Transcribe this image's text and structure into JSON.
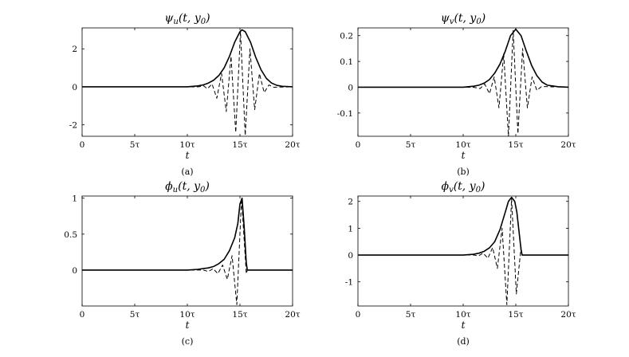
{
  "chart_data": [
    {
      "type": "line",
      "panel": "a",
      "title": "ψu(t, y0)",
      "title_parts": {
        "sym": "ψ",
        "sub": "u",
        "args": "(t, y",
        "sub2": "0",
        "close": ")"
      },
      "xlabel": "t",
      "caption": "(a)",
      "xlim": [
        0,
        20
      ],
      "ylim": [
        -2.6,
        3.1
      ],
      "xtick_values": [
        0,
        5,
        10,
        15,
        20
      ],
      "xtick_labels": [
        "0",
        "5τ",
        "10τ",
        "15τ",
        "20τ"
      ],
      "ytick_values": [
        -2,
        0,
        2
      ],
      "ytick_labels": [
        "-2",
        "0",
        "2"
      ],
      "series": [
        {
          "style": "solid",
          "x": [
            0,
            10,
            11,
            11.5,
            12,
            12.5,
            13,
            13.5,
            14,
            14.5,
            15,
            15.2,
            15.5,
            16,
            16.5,
            17,
            17.5,
            18,
            18.5,
            19,
            20
          ],
          "y": [
            0,
            0.0,
            0.05,
            0.1,
            0.2,
            0.35,
            0.6,
            1.0,
            1.6,
            2.35,
            2.9,
            3.0,
            2.9,
            2.35,
            1.55,
            0.9,
            0.45,
            0.2,
            0.08,
            0.03,
            0
          ]
        },
        {
          "style": "dashed",
          "x": [
            0,
            11,
            11.55,
            11.9,
            12.35,
            12.8,
            13.25,
            13.7,
            14.15,
            14.6,
            15.05,
            15.5,
            15.95,
            16.4,
            16.85,
            17.3,
            17.75,
            18.2,
            20
          ],
          "y": [
            0,
            0,
            0.05,
            -0.1,
            0.15,
            -0.6,
            0.7,
            -1.3,
            1.6,
            -2.4,
            2.9,
            -2.55,
            2.0,
            -1.2,
            0.7,
            -0.3,
            0.1,
            -0.02,
            0
          ]
        }
      ]
    },
    {
      "type": "line",
      "panel": "b",
      "title": "ψv(t, y0)",
      "title_parts": {
        "sym": "ψ",
        "sub": "v",
        "args": "(t, y",
        "sub2": "0",
        "close": ")"
      },
      "xlabel": "t",
      "caption": "(b)",
      "xlim": [
        0,
        20
      ],
      "ylim": [
        -0.19,
        0.23
      ],
      "xtick_values": [
        0,
        5,
        10,
        15,
        20
      ],
      "xtick_labels": [
        "0",
        "5τ",
        "10τ",
        "15τ",
        "20τ"
      ],
      "ytick_values": [
        -0.1,
        0,
        0.1,
        0.2
      ],
      "ytick_labels": [
        "-0.1",
        "0",
        "0.1",
        "0.2"
      ],
      "series": [
        {
          "style": "solid",
          "x": [
            0,
            10,
            11,
            11.5,
            12,
            12.5,
            13,
            13.5,
            14,
            14.5,
            15,
            15.5,
            16,
            16.5,
            17,
            17.5,
            18,
            19,
            20
          ],
          "y": [
            0,
            0,
            0.004,
            0.008,
            0.016,
            0.03,
            0.055,
            0.09,
            0.14,
            0.2,
            0.225,
            0.2,
            0.14,
            0.085,
            0.045,
            0.02,
            0.008,
            0.002,
            0
          ]
        },
        {
          "style": "dashed",
          "x": [
            0,
            11,
            11.6,
            12.05,
            12.5,
            12.95,
            13.4,
            13.85,
            14.3,
            14.75,
            15.2,
            15.65,
            16.1,
            16.55,
            17,
            17.45,
            20
          ],
          "y": [
            0,
            0,
            -0.005,
            0.012,
            -0.025,
            0.04,
            -0.08,
            0.13,
            -0.19,
            0.22,
            -0.18,
            0.15,
            -0.08,
            0.04,
            -0.012,
            0.003,
            0
          ]
        }
      ]
    },
    {
      "type": "line",
      "panel": "c",
      "title": "ϕu(t, y0)",
      "title_parts": {
        "sym": "ϕ",
        "sub": "u",
        "args": "(t, y",
        "sub2": "0",
        "close": ")"
      },
      "xlabel": "t",
      "caption": "(c)",
      "xlim": [
        0,
        20
      ],
      "ylim": [
        -0.5,
        1.03
      ],
      "xtick_values": [
        0,
        5,
        10,
        15,
        20
      ],
      "xtick_labels": [
        "0",
        "5τ",
        "10τ",
        "15τ",
        "20τ"
      ],
      "ytick_values": [
        0,
        0.5,
        1
      ],
      "ytick_labels": [
        "0",
        "0.5",
        "1"
      ],
      "series": [
        {
          "style": "solid",
          "x": [
            0,
            10,
            11,
            11.5,
            12,
            12.5,
            13,
            13.5,
            14,
            14.5,
            14.8,
            15.0,
            15.2,
            15.4,
            15.6,
            15.7,
            16,
            20
          ],
          "y": [
            0,
            0,
            0.01,
            0.02,
            0.03,
            0.05,
            0.09,
            0.15,
            0.27,
            0.45,
            0.65,
            0.92,
            1.0,
            0.6,
            0.1,
            0,
            0,
            0
          ]
        },
        {
          "style": "dashed",
          "x": [
            0,
            11.5,
            12.0,
            12.45,
            12.9,
            13.35,
            13.8,
            14.25,
            14.7,
            15.15,
            15.6,
            15.7,
            20
          ],
          "y": [
            0,
            0,
            -0.02,
            0.02,
            -0.05,
            0.07,
            -0.13,
            0.2,
            -0.48,
            1.0,
            -0.05,
            0,
            0
          ]
        }
      ]
    },
    {
      "type": "line",
      "panel": "d",
      "title": "ϕv(t, y0)",
      "title_parts": {
        "sym": "ϕ",
        "sub": "v",
        "args": "(t, y",
        "sub2": "0",
        "close": ")"
      },
      "xlabel": "t",
      "caption": "(d)",
      "xlim": [
        0,
        20
      ],
      "ylim": [
        -1.9,
        2.2
      ],
      "xtick_values": [
        0,
        5,
        10,
        15,
        20
      ],
      "xtick_labels": [
        "0",
        "5τ",
        "10τ",
        "15τ",
        "20τ"
      ],
      "ytick_values": [
        -1,
        0,
        1,
        2
      ],
      "ytick_labels": [
        "-1",
        "0",
        "1",
        "2"
      ],
      "series": [
        {
          "style": "solid",
          "x": [
            0,
            10,
            11,
            11.5,
            12,
            12.5,
            13,
            13.5,
            14,
            14.3,
            14.6,
            14.9,
            15.1,
            15.3,
            15.5,
            15.6,
            16,
            20
          ],
          "y": [
            0,
            0,
            0.03,
            0.07,
            0.14,
            0.27,
            0.5,
            0.95,
            1.6,
            2.0,
            2.15,
            2.0,
            1.6,
            0.9,
            0.2,
            0,
            0,
            0
          ]
        },
        {
          "style": "dashed",
          "x": [
            0,
            11,
            11.45,
            11.9,
            12.35,
            12.8,
            13.25,
            13.7,
            14.15,
            14.6,
            15.05,
            15.5,
            15.6,
            20
          ],
          "y": [
            0,
            0,
            -0.03,
            0.07,
            -0.12,
            0.28,
            -0.5,
            1.0,
            -1.85,
            2.1,
            -1.45,
            0.3,
            0,
            0
          ]
        }
      ]
    }
  ]
}
